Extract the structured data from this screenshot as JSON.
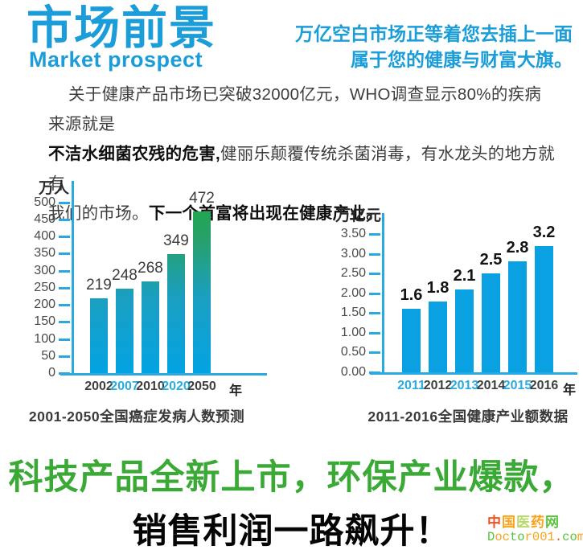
{
  "header": {
    "title_cn": "市场前景",
    "title_en": "Market prospect",
    "slogan_line1": "万亿空白市场正等着您去插上一面",
    "slogan_line2": "属于您的健康与财富大旗。"
  },
  "paragraph": {
    "seg1": "关于健康产品市场已突破32000亿元，WHO调查显示80%的疾病来源就是",
    "seg2_bold": "不洁水细菌农残的危害,",
    "seg3": "健丽乐颠覆传统杀菌消毒，有水龙头的地方就有",
    "seg4": "我们的市场。",
    "seg5_bold": "下一个首富将出现在健康产业。"
  },
  "chart_data": [
    {
      "type": "bar",
      "title": "2001-2050全国癌症发病人数预测",
      "unit_label": "万人",
      "ylabel": "万人",
      "x_suffix": "年",
      "categories": [
        "2002",
        "2007",
        "2010",
        "2020",
        "2050"
      ],
      "values": [
        219,
        248,
        268,
        349,
        472
      ],
      "value_labels": [
        "219",
        "248",
        "268",
        "349",
        "472"
      ],
      "ticks": [
        0,
        50,
        100,
        150,
        200,
        250,
        300,
        350,
        400,
        450,
        500
      ],
      "tick_labels": [
        "0",
        "50",
        "100",
        "150",
        "200",
        "250",
        "300",
        "350",
        "400",
        "450",
        "500"
      ],
      "ylim": [
        0,
        500
      ],
      "grid": false,
      "legend": "none",
      "category_label_colors": [
        "#3f3f3f",
        "#29abe2",
        "#3f3f3f",
        "#29abe2",
        "#3f3f3f"
      ],
      "bar_style": "gradient-blue-green"
    },
    {
      "type": "bar",
      "title": "2011-2016全国健康产业额数据",
      "unit_label": "万亿元",
      "ylabel": "万亿元",
      "x_suffix": "年",
      "categories": [
        "2011",
        "2012",
        "2013",
        "2014",
        "2015",
        "2016"
      ],
      "values": [
        1.6,
        1.8,
        2.1,
        2.5,
        2.8,
        3.2
      ],
      "value_labels": [
        "1.6",
        "1.8",
        "2.1",
        "2.5",
        "2.8",
        "3.2"
      ],
      "ticks": [
        0,
        0.5,
        1,
        1.5,
        2,
        2.5,
        3,
        3.5
      ],
      "tick_labels": [
        "0.00",
        "0.50",
        "1.00",
        "1.50",
        "2.00",
        "2.50",
        "3.00",
        "3.50"
      ],
      "ylim": [
        0,
        3.5
      ],
      "grid": false,
      "legend": "none",
      "category_label_colors": [
        "#29abe2",
        "#3f3f3f",
        "#29abe2",
        "#3f3f3f",
        "#29abe2",
        "#3f3f3f"
      ],
      "bar_style": "solid-blue"
    }
  ],
  "footer": {
    "green_line": "科技产品全新上市，环保产业爆款，",
    "black_line": "销售利润一路飙升！"
  },
  "watermark": {
    "line1_text": "中国医药网",
    "line2_text": "Doctor001.com",
    "line1_chars": [
      {
        "c": "中",
        "color": "#f4511e"
      },
      {
        "c": "国",
        "color": "#f9a21b"
      },
      {
        "c": "医",
        "color": "#b7d96a"
      },
      {
        "c": "药",
        "color": "#f9a21b"
      },
      {
        "c": "网",
        "color": "#58c43c"
      }
    ],
    "line2_chars": [
      {
        "c": "D",
        "color": "#58c43c"
      },
      {
        "c": "o",
        "color": "#f9a21b"
      },
      {
        "c": "c",
        "color": "#f9a21b"
      },
      {
        "c": "t",
        "color": "#58c43c"
      },
      {
        "c": "o",
        "color": "#58c43c"
      },
      {
        "c": "r",
        "color": "#f9a21b"
      },
      {
        "c": "0",
        "color": "#f9a21b"
      },
      {
        "c": "0",
        "color": "#f9a21b"
      },
      {
        "c": "1",
        "color": "#f9a21b"
      },
      {
        "c": ".",
        "color": "#f4511e"
      },
      {
        "c": "c",
        "color": "#58c43c"
      },
      {
        "c": "o",
        "color": "#58c43c"
      },
      {
        "c": "m",
        "color": "#f9a21b"
      }
    ]
  },
  "colors": {
    "brand_blue": "#1b9dd9",
    "axis_blue": "#29a9e0",
    "bar_cyan": "#0aa1e2",
    "bar_green_top": "#1fa84b",
    "headline_green": "#3aa935",
    "text_dark": "#3e3e3e"
  }
}
